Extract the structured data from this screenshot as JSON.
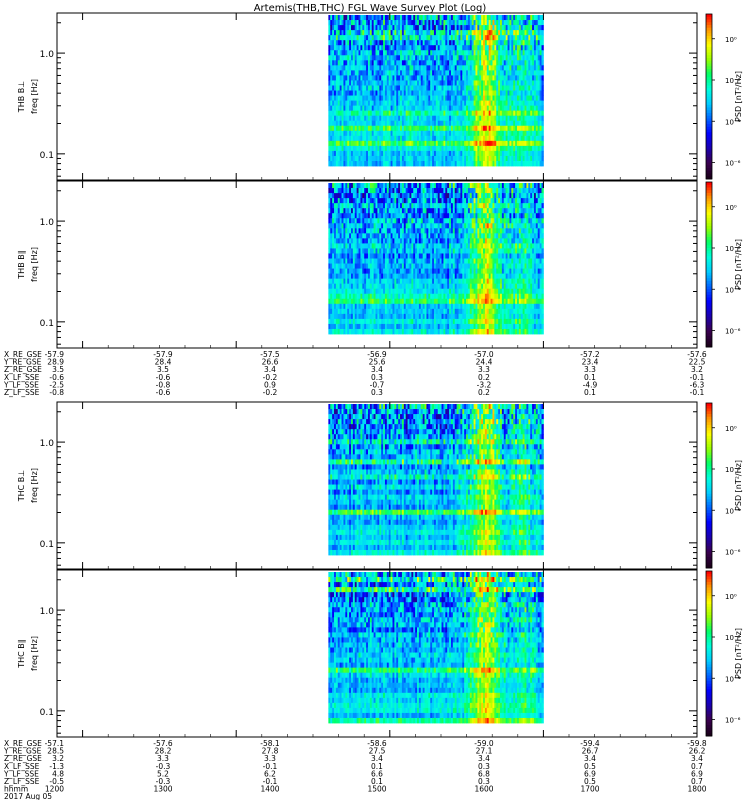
{
  "chart_data": {
    "type": "heatmap",
    "title": "Artemis(THB,THC) FGL Wave Survey Plot (Log)",
    "colormap": [
      "#1a001a",
      "#3a0050",
      "#1a00b0",
      "#0000ff",
      "#0066ff",
      "#00ccff",
      "#00ffdd",
      "#00ff66",
      "#99ff00",
      "#ffff00",
      "#ff9900",
      "#ff0000"
    ],
    "panels": [
      {
        "name": "THB B_L",
        "ylabel_probe": "THB B⊥",
        "ylabel_freq": "freq [Hz]",
        "seed": 11,
        "yticks": [
          "1.0",
          "0.1"
        ],
        "cbar_label": "PSD [nT²/Hz]",
        "cbar_ticks": [
          "10⁰",
          "10⁻²",
          "10⁻⁴",
          "10⁻⁶"
        ]
      },
      {
        "name": "THB B_par",
        "ylabel_probe": "THB B∥",
        "ylabel_freq": "freq [Hz]",
        "seed": 23,
        "yticks": [
          "1.0",
          "0.1"
        ],
        "cbar_label": "PSD [nT²/Hz]",
        "cbar_ticks": [
          "10⁰",
          "10⁻²",
          "10⁻⁴",
          "10⁻⁶"
        ]
      },
      {
        "name": "THC B_L",
        "ylabel_probe": "THC B⊥",
        "ylabel_freq": "freq [Hz]",
        "seed": 37,
        "yticks": [
          "1.0",
          "0.1"
        ],
        "cbar_label": "PSD [nT²/Hz]",
        "cbar_ticks": [
          "10⁰",
          "10⁻²",
          "10⁻⁴",
          "10⁻⁶"
        ]
      },
      {
        "name": "THC B_par",
        "ylabel_probe": "THC B∥",
        "ylabel_freq": "freq [Hz]",
        "seed": 53,
        "yticks": [
          "1.0",
          "0.1"
        ],
        "cbar_label": "PSD [nT²/Hz]",
        "cbar_ticks": [
          "10⁰",
          "10⁻²",
          "10⁻⁴",
          "10⁻⁶"
        ]
      }
    ],
    "x_range_hhmm": [
      1150,
      1600
    ],
    "data_range_hhmm": [
      1336,
      1500
    ],
    "ephemeris": [
      {
        "labels": [
          "X_RE_GSE",
          "Y_RE_GSE",
          "Z_RE_GSE",
          "X_LF_SSE",
          "Y_LF_SSE",
          "Z_LF_SSE"
        ],
        "rows": [
          [
            "-57.9",
            "-57.9",
            "-57.5",
            "-56.9",
            "-57.0",
            "-57.2",
            "-57.6"
          ],
          [
            "28.9",
            "28.4",
            "26.6",
            "25.6",
            "24.4",
            "23.4",
            "22.5"
          ],
          [
            "3.5",
            "3.5",
            "3.4",
            "3.4",
            "3.3",
            "3.3",
            "3.2"
          ],
          [
            "-0.6",
            "-0.6",
            "-0.2",
            "0.3",
            "0.2",
            "0.1",
            "-0.1"
          ],
          [
            "-2.5",
            "-0.8",
            "0.9",
            "-0.7",
            "-3.2",
            "-4.9",
            "-6.3"
          ],
          [
            "-0.8",
            "-0.6",
            "-0.2",
            "0.3",
            "0.2",
            "0.1",
            "-0.1"
          ]
        ]
      },
      {
        "labels": [
          "X_RE_GSE",
          "Y_RE_GSE",
          "Z_RE_GSE",
          "X_LF_SSE",
          "Y_LF_SSE",
          "Z_LF_SSE",
          "hhmm",
          "2017 Aug 05"
        ],
        "rows": [
          [
            "-57.1",
            "-57.6",
            "-58.1",
            "-58.6",
            "-59.0",
            "-59.4",
            "-59.8"
          ],
          [
            "28.5",
            "28.2",
            "27.8",
            "27.5",
            "27.1",
            "26.7",
            "26.2"
          ],
          [
            "3.2",
            "3.3",
            "3.3",
            "3.4",
            "3.4",
            "3.4",
            "3.4"
          ],
          [
            "-1.3",
            "-0.3",
            "-0.1",
            "0.1",
            "0.3",
            "0.5",
            "0.7"
          ],
          [
            "4.8",
            "5.2",
            "6.2",
            "6.6",
            "6.8",
            "6.9",
            "6.9"
          ],
          [
            "-0.5",
            "-0.3",
            "-0.1",
            "0.1",
            "0.3",
            "0.5",
            "0.7"
          ],
          [
            "1200",
            "1300",
            "1400",
            "1500",
            "1600",
            "1700",
            "1800"
          ],
          []
        ]
      }
    ]
  }
}
